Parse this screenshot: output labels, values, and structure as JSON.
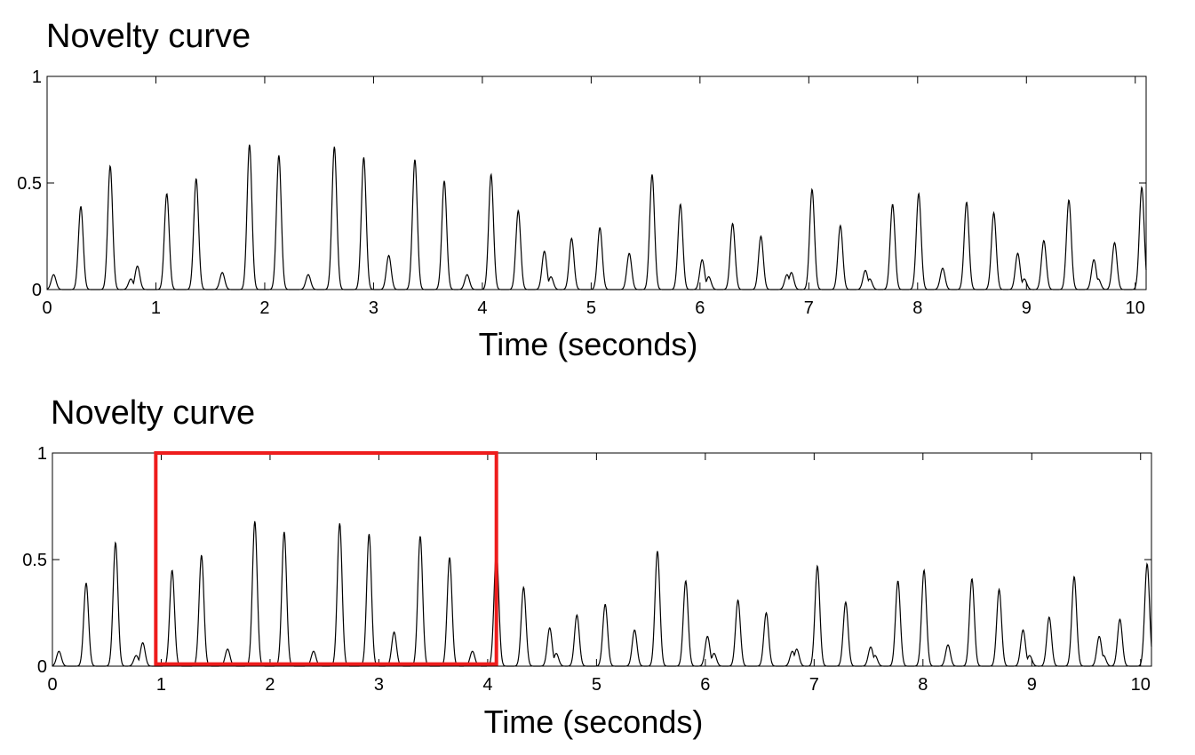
{
  "chart_data": [
    {
      "type": "line",
      "title": "Novelty curve",
      "xlabel": "Time (seconds)",
      "ylabel": "",
      "xlim": [
        0,
        10.1
      ],
      "ylim": [
        0,
        1
      ],
      "xticks": [
        "0",
        "1",
        "2",
        "3",
        "4",
        "5",
        "6",
        "7",
        "8",
        "9",
        "10"
      ],
      "yticks": [
        "0",
        "0.5",
        "1"
      ],
      "grid": false,
      "series": [
        {
          "color": "#000000",
          "peaks": [
            [
              0.06,
              0.07
            ],
            [
              0.31,
              0.39
            ],
            [
              0.58,
              0.58
            ],
            [
              0.77,
              0.05
            ],
            [
              0.83,
              0.11
            ],
            [
              1.1,
              0.45
            ],
            [
              1.37,
              0.52
            ],
            [
              1.61,
              0.08
            ],
            [
              1.86,
              0.68
            ],
            [
              2.13,
              0.63
            ],
            [
              2.4,
              0.07
            ],
            [
              2.64,
              0.67
            ],
            [
              2.91,
              0.62
            ],
            [
              3.14,
              0.16
            ],
            [
              3.38,
              0.61
            ],
            [
              3.65,
              0.51
            ],
            [
              3.86,
              0.07
            ],
            [
              4.08,
              0.54
            ],
            [
              4.33,
              0.37
            ],
            [
              4.57,
              0.18
            ],
            [
              4.63,
              0.06
            ],
            [
              4.82,
              0.24
            ],
            [
              5.08,
              0.29
            ],
            [
              5.35,
              0.17
            ],
            [
              5.56,
              0.54
            ],
            [
              5.82,
              0.4
            ],
            [
              6.02,
              0.14
            ],
            [
              6.08,
              0.06
            ],
            [
              6.3,
              0.31
            ],
            [
              6.56,
              0.25
            ],
            [
              6.8,
              0.07
            ],
            [
              6.84,
              0.08
            ],
            [
              7.03,
              0.47
            ],
            [
              7.29,
              0.3
            ],
            [
              7.52,
              0.09
            ],
            [
              7.56,
              0.05
            ],
            [
              7.77,
              0.4
            ],
            [
              8.01,
              0.45
            ],
            [
              8.23,
              0.1
            ],
            [
              8.45,
              0.41
            ],
            [
              8.7,
              0.36
            ],
            [
              8.92,
              0.17
            ],
            [
              8.98,
              0.05
            ],
            [
              9.16,
              0.23
            ],
            [
              9.39,
              0.42
            ],
            [
              9.62,
              0.14
            ],
            [
              9.66,
              0.05
            ],
            [
              9.81,
              0.22
            ],
            [
              10.06,
              0.48
            ]
          ]
        }
      ]
    },
    {
      "type": "line",
      "title": "Novelty curve",
      "xlabel": "Time (seconds)",
      "ylabel": "",
      "xlim": [
        0,
        10.1
      ],
      "ylim": [
        0,
        1
      ],
      "xticks": [
        "0",
        "1",
        "2",
        "3",
        "4",
        "5",
        "6",
        "7",
        "8",
        "9",
        "10"
      ],
      "yticks": [
        "0",
        "0.5",
        "1"
      ],
      "grid": false,
      "highlight": {
        "color": "#ee1c1c",
        "x": [
          0.95,
          4.08
        ],
        "y": [
          0.01,
          1.0
        ]
      },
      "series": [
        {
          "color": "#000000",
          "peaks": [
            [
              0.06,
              0.07
            ],
            [
              0.31,
              0.39
            ],
            [
              0.58,
              0.58
            ],
            [
              0.77,
              0.05
            ],
            [
              0.83,
              0.11
            ],
            [
              1.1,
              0.45
            ],
            [
              1.37,
              0.52
            ],
            [
              1.61,
              0.08
            ],
            [
              1.86,
              0.68
            ],
            [
              2.13,
              0.63
            ],
            [
              2.4,
              0.07
            ],
            [
              2.64,
              0.67
            ],
            [
              2.91,
              0.62
            ],
            [
              3.14,
              0.16
            ],
            [
              3.38,
              0.61
            ],
            [
              3.65,
              0.51
            ],
            [
              3.86,
              0.07
            ],
            [
              4.08,
              0.54
            ],
            [
              4.33,
              0.37
            ],
            [
              4.57,
              0.18
            ],
            [
              4.63,
              0.06
            ],
            [
              4.82,
              0.24
            ],
            [
              5.08,
              0.29
            ],
            [
              5.35,
              0.17
            ],
            [
              5.56,
              0.54
            ],
            [
              5.82,
              0.4
            ],
            [
              6.02,
              0.14
            ],
            [
              6.08,
              0.06
            ],
            [
              6.3,
              0.31
            ],
            [
              6.56,
              0.25
            ],
            [
              6.8,
              0.07
            ],
            [
              6.84,
              0.08
            ],
            [
              7.03,
              0.47
            ],
            [
              7.29,
              0.3
            ],
            [
              7.52,
              0.09
            ],
            [
              7.56,
              0.05
            ],
            [
              7.77,
              0.4
            ],
            [
              8.01,
              0.45
            ],
            [
              8.23,
              0.1
            ],
            [
              8.45,
              0.41
            ],
            [
              8.7,
              0.36
            ],
            [
              8.92,
              0.17
            ],
            [
              8.98,
              0.05
            ],
            [
              9.16,
              0.23
            ],
            [
              9.39,
              0.42
            ],
            [
              9.62,
              0.14
            ],
            [
              9.66,
              0.05
            ],
            [
              9.81,
              0.22
            ],
            [
              10.06,
              0.48
            ]
          ]
        }
      ]
    }
  ]
}
